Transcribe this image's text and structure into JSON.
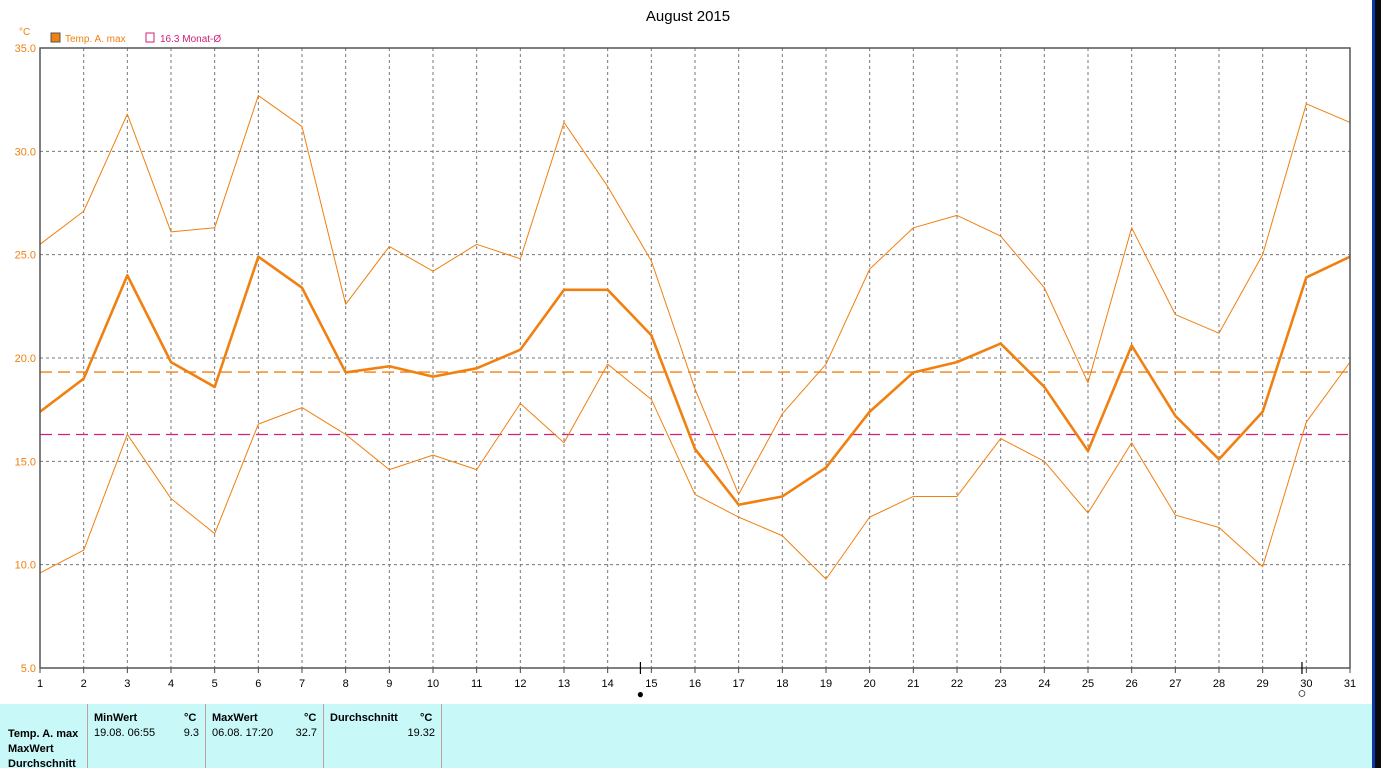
{
  "title": "August 2015",
  "colors": {
    "series": "#f08010",
    "monthly_avg": "#d0207a",
    "period_avg": "#f08010",
    "axis_text": "#f08010",
    "stats_bg": "#c8f8f8"
  },
  "legend": {
    "items": [
      {
        "label": "Temp. A. max",
        "marker": "filled-square",
        "color": "#f08010"
      },
      {
        "label": "16.3 Monat-Ø",
        "marker": "outline-square",
        "color": "#d0207a"
      }
    ]
  },
  "markers": {
    "new_moon_icon": "●",
    "full_moon_icon": "○"
  },
  "chart_data": {
    "type": "line",
    "ylabel": "°C",
    "ylim": [
      5,
      35
    ],
    "y_ticks": [
      "5.0",
      "10.0",
      "15.0",
      "20.0",
      "25.0",
      "30.0",
      "35.0"
    ],
    "x_ticks": [
      "1",
      "2",
      "3",
      "4",
      "5",
      "6",
      "7",
      "8",
      "9",
      "10",
      "11",
      "12",
      "13",
      "14",
      "15",
      "16",
      "17",
      "18",
      "19",
      "20",
      "21",
      "22",
      "23",
      "24",
      "25",
      "26",
      "27",
      "28",
      "29",
      "30",
      "31"
    ],
    "xlim": [
      1,
      31
    ],
    "grid": true,
    "legend_position": "top-left",
    "x": [
      1,
      2,
      3,
      4,
      5,
      6,
      7,
      8,
      9,
      10,
      11,
      12,
      13,
      14,
      15,
      16,
      17,
      18,
      19,
      20,
      21,
      22,
      23,
      24,
      25,
      26,
      27,
      28,
      29,
      30,
      31
    ],
    "series": [
      {
        "name": "Temp. A. max",
        "role": "mean",
        "color": "#f08010",
        "values": [
          17.4,
          19.0,
          24.0,
          19.8,
          18.6,
          24.9,
          23.4,
          19.3,
          19.6,
          19.1,
          19.5,
          20.4,
          23.3,
          23.3,
          21.1,
          15.6,
          12.9,
          13.3,
          14.7,
          17.4,
          19.3,
          19.8,
          20.7,
          18.6,
          15.5,
          20.6,
          17.2,
          15.1,
          17.4,
          23.9,
          24.9
        ]
      },
      {
        "role": "upper",
        "color": "#f08010",
        "values": [
          25.5,
          27.1,
          31.8,
          26.1,
          26.3,
          32.7,
          31.2,
          22.6,
          25.4,
          24.2,
          25.5,
          24.8,
          31.4,
          28.3,
          24.7,
          18.5,
          13.4,
          17.3,
          19.7,
          24.3,
          26.3,
          26.9,
          25.9,
          23.4,
          18.8,
          26.3,
          22.1,
          21.2,
          25.0,
          32.3,
          31.4
        ]
      },
      {
        "role": "lower",
        "color": "#f08010",
        "values": [
          9.6,
          10.7,
          16.3,
          13.2,
          11.5,
          16.8,
          17.6,
          16.3,
          14.6,
          15.3,
          14.6,
          17.8,
          15.9,
          19.7,
          18.0,
          13.4,
          12.3,
          11.4,
          9.3,
          12.3,
          13.3,
          13.3,
          16.1,
          15.0,
          12.5,
          15.9,
          12.4,
          11.8,
          9.9,
          16.9,
          19.8
        ]
      }
    ],
    "reference_lines": [
      {
        "role": "period-average",
        "value": 19.32,
        "color": "#f08010"
      },
      {
        "role": "monthly-average",
        "value": 16.3,
        "color": "#d0207a"
      }
    ],
    "moon_phases": [
      {
        "phase": "new",
        "x": 14.75
      },
      {
        "phase": "full",
        "x": 29.9
      }
    ]
  },
  "stats": {
    "row_labels": [
      "Temp. A. max",
      "MaxWert",
      "Durchschnitt"
    ],
    "min": {
      "header": "MinWert",
      "unit": "°C",
      "datetime": "19.08.  06:55",
      "value": "9.3"
    },
    "max": {
      "header": "MaxWert",
      "unit": "°C",
      "datetime": "06.08.  17:20",
      "value": "32.7"
    },
    "avg": {
      "header": "Durchschnitt",
      "unit": "°C",
      "value": "19.32"
    }
  }
}
